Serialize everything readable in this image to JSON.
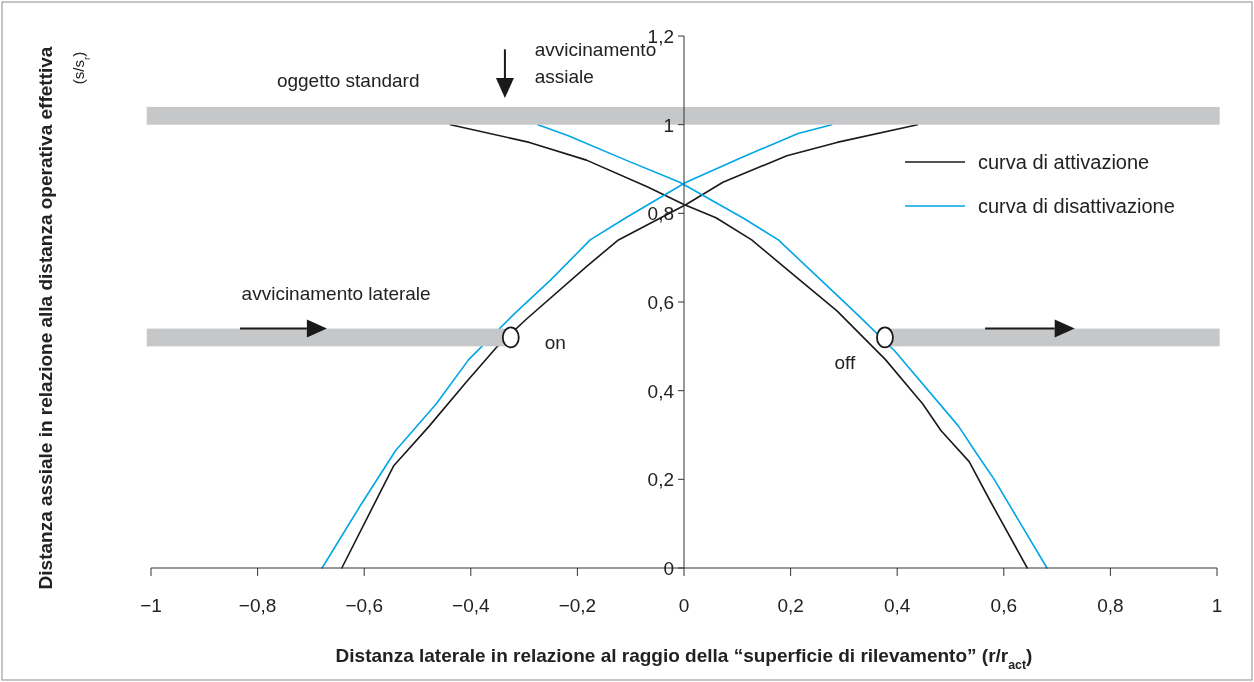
{
  "chart_data": {
    "type": "line",
    "xlabel": "Distanza laterale in relazione al raggio della “superficie di rilevamento” (r/r$_{act}$)",
    "ylabel": "Distanza assiale in relazione alla distanza operativa effettiva\n(s/s$_{r}$)",
    "xlim": [
      -1,
      1
    ],
    "ylim": [
      0,
      1.2
    ],
    "xticks": [
      {
        "value": -1,
        "label": "−1"
      },
      {
        "value": -0.8,
        "label": "−0,8"
      },
      {
        "value": -0.6,
        "label": "−0,6"
      },
      {
        "value": -0.4,
        "label": "−0,4"
      },
      {
        "value": -0.2,
        "label": "−0,2"
      },
      0,
      {
        "value": 0.2,
        "label": "0,2"
      },
      {
        "value": 0.4,
        "label": "0,4"
      },
      {
        "value": 0.6,
        "label": "0,6"
      },
      {
        "value": 0.8,
        "label": "0,8"
      },
      1
    ],
    "yticks": [
      0,
      {
        "value": 0.2,
        "label": "0,2"
      },
      {
        "value": 0.4,
        "label": "0,4"
      },
      {
        "value": 0.6,
        "label": "0,6"
      },
      {
        "value": 0.8,
        "label": "0,8"
      },
      1,
      {
        "value": 1.2,
        "label": "1,2"
      }
    ],
    "legend": "top right",
    "line_style": "solid",
    "series": [
      {
        "name": "curva di attivazione",
        "color": "#1a1a1a",
        "x": [
          -0.642,
          -0.545,
          -0.478,
          -0.408,
          -0.35,
          -0.297,
          -0.183,
          -0.123,
          0.004,
          0.073,
          0.193,
          0.287,
          0.438
        ],
        "values": [
          0,
          0.23,
          0.32,
          0.42,
          0.5,
          0.56,
          0.68,
          0.74,
          0.82,
          0.87,
          0.93,
          0.96,
          1.0
        ]
      },
      {
        "color": "#1a1a1a",
        "x": [
          -0.438,
          -0.29,
          -0.183,
          -0.069,
          0.0,
          0.06,
          0.127,
          0.187,
          0.287,
          0.378,
          0.448,
          0.482,
          0.535,
          0.575,
          0.644
        ],
        "values": [
          1.0,
          0.96,
          0.92,
          0.86,
          0.82,
          0.79,
          0.74,
          0.68,
          0.58,
          0.47,
          0.37,
          0.31,
          0.24,
          0.15,
          0
        ]
      },
      {
        "name": "curva di disattivazione",
        "color": "#00a6e6",
        "x": [
          -0.679,
          -0.605,
          -0.541,
          -0.465,
          -0.404,
          -0.317,
          -0.25,
          -0.176,
          -0.109,
          0.004,
          0.106,
          0.214,
          0.277
        ],
        "values": [
          0,
          0.145,
          0.265,
          0.37,
          0.47,
          0.575,
          0.65,
          0.74,
          0.79,
          0.87,
          0.925,
          0.98,
          1.0
        ]
      },
      {
        "color": "#00a6e6",
        "x": [
          -0.274,
          -0.217,
          -0.109,
          -0.008,
          0.11,
          0.177,
          0.274,
          0.327,
          0.395,
          0.515,
          0.548,
          0.582,
          0.681
        ],
        "values": [
          1.0,
          0.975,
          0.92,
          0.87,
          0.79,
          0.74,
          0.63,
          0.57,
          0.49,
          0.32,
          0.26,
          0.2,
          0
        ]
      }
    ],
    "annotations": [
      "oggetto standard",
      "avvicinamento\nassiale",
      "avvicinamento laterale",
      {
        "text": "on",
        "x": -0.325,
        "y": 0.52
      },
      {
        "text": "off",
        "x": 0.377,
        "y": 0.52
      }
    ]
  }
}
